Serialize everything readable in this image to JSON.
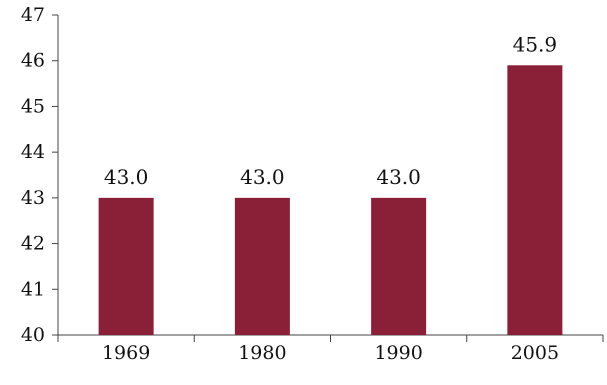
{
  "chart_data": {
    "type": "bar",
    "categories": [
      "1969",
      "1980",
      "1990",
      "2005"
    ],
    "values": [
      43.0,
      43.0,
      43.0,
      45.9
    ],
    "data_labels": [
      "43.0",
      "43.0",
      "43.0",
      "45.9"
    ],
    "ylim": [
      40,
      47
    ],
    "yticks": [
      "40",
      "41",
      "42",
      "43",
      "44",
      "45",
      "46",
      "47"
    ],
    "title": "",
    "xlabel": "",
    "ylabel": "",
    "grid": false,
    "legend": "none",
    "bar_color": "#8a1f38"
  }
}
